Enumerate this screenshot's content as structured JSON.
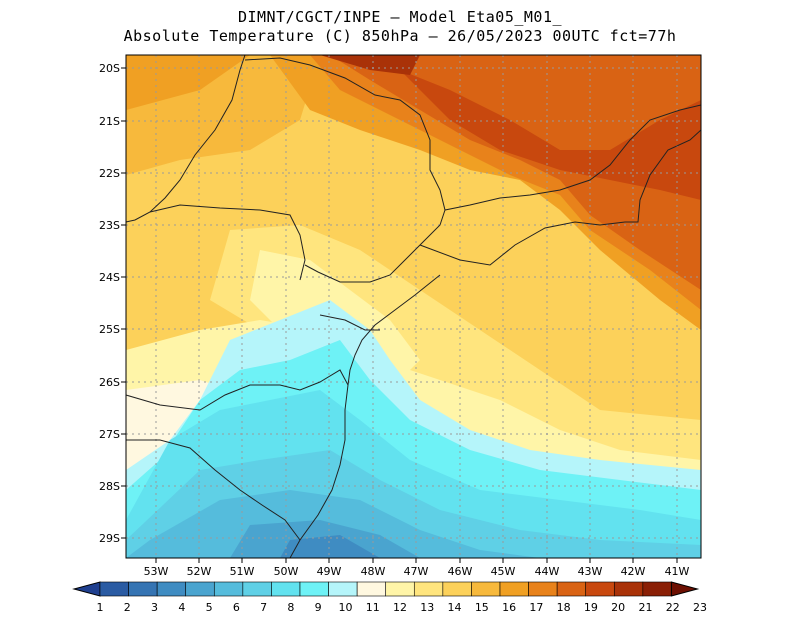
{
  "header": {
    "line1": "DIMNT/CGCT/INPE –  Model Eta05_M01_",
    "line2": "Absolute Temperature (C) 850hPa –  26/05/2023 00UTC fct=77h"
  },
  "axes": {
    "lat_labels": [
      "20S",
      "21S",
      "22S",
      "23S",
      "24S",
      "25S",
      "26S",
      "27S",
      "28S",
      "29S"
    ],
    "lon_labels": [
      "53W",
      "52W",
      "51W",
      "50W",
      "49W",
      "48W",
      "47W",
      "46W",
      "45W",
      "44W",
      "43W",
      "42W",
      "41W"
    ]
  },
  "colorbar": {
    "labels": [
      "1",
      "2",
      "3",
      "4",
      "5",
      "6",
      "7",
      "8",
      "9",
      "10",
      "11",
      "12",
      "13",
      "14",
      "15",
      "16",
      "17",
      "18",
      "19",
      "20",
      "21",
      "22",
      "23"
    ],
    "colors": [
      "#1f3f8f",
      "#2a5ba3",
      "#3574b3",
      "#3f8cc2",
      "#4aa4cf",
      "#55bcdc",
      "#5fd0e6",
      "#62e2ef",
      "#6ef2f6",
      "#b5f5fa",
      "#fff8e0",
      "#fff5a8",
      "#ffe57e",
      "#fcd15a",
      "#f7b93c",
      "#f0a023",
      "#e8821b",
      "#d96314",
      "#c8480e",
      "#a93208",
      "#8a1f05",
      "#6d1002"
    ]
  }
}
